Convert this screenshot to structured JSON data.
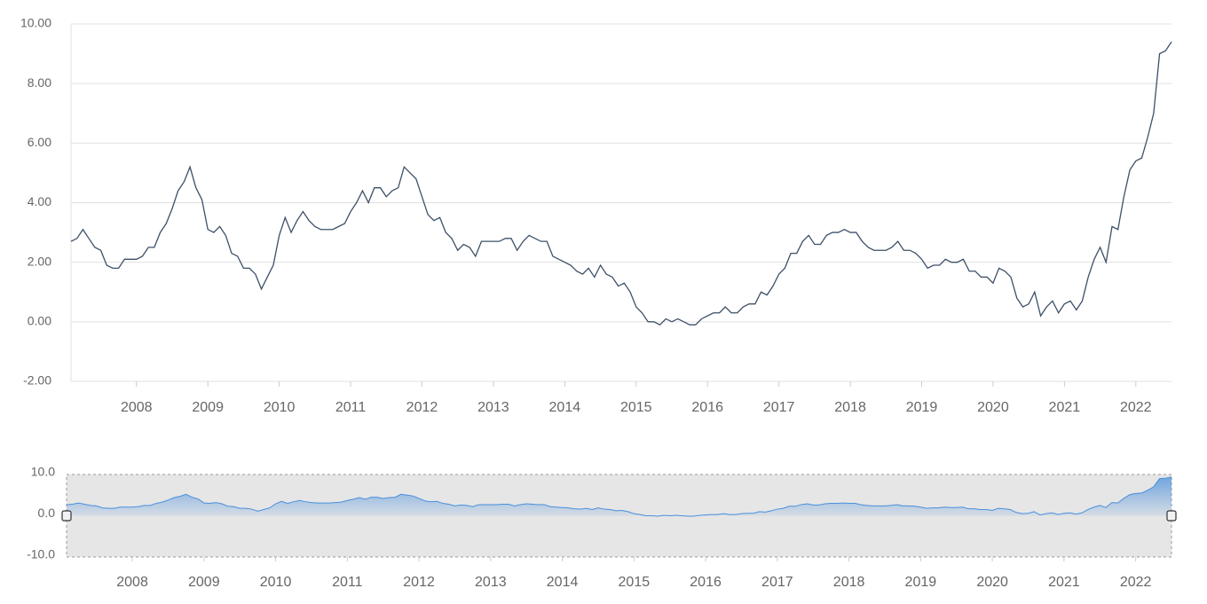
{
  "chart_data": {
    "type": "line",
    "color": "#3d5068",
    "grid": true,
    "x": [
      2007.083,
      2007.167,
      2007.25,
      2007.333,
      2007.417,
      2007.5,
      2007.583,
      2007.667,
      2007.75,
      2007.833,
      2007.917,
      2008,
      2008.083,
      2008.167,
      2008.25,
      2008.333,
      2008.417,
      2008.5,
      2008.583,
      2008.667,
      2008.75,
      2008.833,
      2008.917,
      2009,
      2009.083,
      2009.167,
      2009.25,
      2009.333,
      2009.417,
      2009.5,
      2009.583,
      2009.667,
      2009.75,
      2009.833,
      2009.917,
      2010,
      2010.083,
      2010.167,
      2010.25,
      2010.333,
      2010.417,
      2010.5,
      2010.583,
      2010.667,
      2010.75,
      2010.833,
      2010.917,
      2011,
      2011.083,
      2011.167,
      2011.25,
      2011.333,
      2011.417,
      2011.5,
      2011.583,
      2011.667,
      2011.75,
      2011.833,
      2011.917,
      2012,
      2012.083,
      2012.167,
      2012.25,
      2012.333,
      2012.417,
      2012.5,
      2012.583,
      2012.667,
      2012.75,
      2012.833,
      2012.917,
      2013,
      2013.083,
      2013.167,
      2013.25,
      2013.333,
      2013.417,
      2013.5,
      2013.583,
      2013.667,
      2013.75,
      2013.833,
      2013.917,
      2014,
      2014.083,
      2014.167,
      2014.25,
      2014.333,
      2014.417,
      2014.5,
      2014.583,
      2014.667,
      2014.75,
      2014.833,
      2014.917,
      2015,
      2015.083,
      2015.167,
      2015.25,
      2015.333,
      2015.417,
      2015.5,
      2015.583,
      2015.667,
      2015.75,
      2015.833,
      2015.917,
      2016,
      2016.083,
      2016.167,
      2016.25,
      2016.333,
      2016.417,
      2016.5,
      2016.583,
      2016.667,
      2016.75,
      2016.833,
      2016.917,
      2017,
      2017.083,
      2017.167,
      2017.25,
      2017.333,
      2017.417,
      2017.5,
      2017.583,
      2017.667,
      2017.75,
      2017.833,
      2017.917,
      2018,
      2018.083,
      2018.167,
      2018.25,
      2018.333,
      2018.417,
      2018.5,
      2018.583,
      2018.667,
      2018.75,
      2018.833,
      2018.917,
      2019,
      2019.083,
      2019.167,
      2019.25,
      2019.333,
      2019.417,
      2019.5,
      2019.583,
      2019.667,
      2019.75,
      2019.833,
      2019.917,
      2020,
      2020.083,
      2020.167,
      2020.25,
      2020.333,
      2020.417,
      2020.5,
      2020.583,
      2020.667,
      2020.75,
      2020.833,
      2020.917,
      2021,
      2021.083,
      2021.167,
      2021.25,
      2021.333,
      2021.417,
      2021.5,
      2021.583,
      2021.667,
      2021.75,
      2021.833,
      2021.917,
      2022,
      2022.083,
      2022.167,
      2022.25,
      2022.333,
      2022.417,
      2022.5
    ],
    "values": [
      2.7,
      2.8,
      3.1,
      2.8,
      2.5,
      2.4,
      1.9,
      1.8,
      1.8,
      2.1,
      2.1,
      2.1,
      2.2,
      2.5,
      2.5,
      3.0,
      3.3,
      3.8,
      4.4,
      4.7,
      5.2,
      4.5,
      4.1,
      3.1,
      3.0,
      3.2,
      2.9,
      2.3,
      2.2,
      1.8,
      1.8,
      1.6,
      1.1,
      1.5,
      1.9,
      2.9,
      3.5,
      3.0,
      3.4,
      3.7,
      3.4,
      3.2,
      3.1,
      3.1,
      3.1,
      3.2,
      3.3,
      3.7,
      4.0,
      4.4,
      4.0,
      4.5,
      4.5,
      4.2,
      4.4,
      4.5,
      5.2,
      5.0,
      4.8,
      4.2,
      3.6,
      3.4,
      3.5,
      3.0,
      2.8,
      2.4,
      2.6,
      2.5,
      2.2,
      2.7,
      2.7,
      2.7,
      2.7,
      2.8,
      2.8,
      2.4,
      2.7,
      2.9,
      2.8,
      2.7,
      2.7,
      2.2,
      2.1,
      2.0,
      1.9,
      1.7,
      1.6,
      1.8,
      1.5,
      1.9,
      1.6,
      1.5,
      1.2,
      1.3,
      1.0,
      0.5,
      0.3,
      0.0,
      0.0,
      -0.1,
      0.1,
      0.0,
      0.1,
      0.0,
      -0.1,
      -0.1,
      0.1,
      0.2,
      0.3,
      0.3,
      0.5,
      0.3,
      0.3,
      0.5,
      0.6,
      0.6,
      1.0,
      0.9,
      1.2,
      1.6,
      1.8,
      2.3,
      2.3,
      2.7,
      2.9,
      2.6,
      2.6,
      2.9,
      3.0,
      3.0,
      3.1,
      3.0,
      3.0,
      2.7,
      2.5,
      2.4,
      2.4,
      2.4,
      2.5,
      2.7,
      2.4,
      2.4,
      2.3,
      2.1,
      1.8,
      1.9,
      1.9,
      2.1,
      2.0,
      2.0,
      2.1,
      1.7,
      1.7,
      1.5,
      1.5,
      1.3,
      1.8,
      1.7,
      1.5,
      0.8,
      0.5,
      0.6,
      1.0,
      0.2,
      0.5,
      0.7,
      0.3,
      0.6,
      0.7,
      0.4,
      0.7,
      1.5,
      2.1,
      2.5,
      2.0,
      3.2,
      3.1,
      4.2,
      5.1,
      5.4,
      5.5,
      6.2,
      7.0,
      9.0,
      9.1,
      9.4
    ],
    "xlim": [
      2007.083,
      2022.5
    ],
    "xticks": [
      2008,
      2009,
      2010,
      2011,
      2012,
      2013,
      2014,
      2015,
      2016,
      2017,
      2018,
      2019,
      2020,
      2021,
      2022
    ],
    "ylim": [
      -2,
      10
    ],
    "yticks": [
      {
        "value": -2,
        "label": "-2.00"
      },
      {
        "value": 0,
        "label": "0.00"
      },
      {
        "value": 2,
        "label": "2.00"
      },
      {
        "value": 4,
        "label": "4.00"
      },
      {
        "value": 6,
        "label": "6.00"
      },
      {
        "value": 8,
        "label": "8.00"
      },
      {
        "value": 10,
        "label": "10.00"
      }
    ],
    "navigator": {
      "color": "#4a8fdc",
      "ylim": [
        -10,
        10
      ],
      "yticks": [
        {
          "value": -10,
          "label": "-10.0"
        },
        {
          "value": 0,
          "label": "0.0"
        },
        {
          "value": 10,
          "label": "10.0"
        }
      ]
    }
  }
}
